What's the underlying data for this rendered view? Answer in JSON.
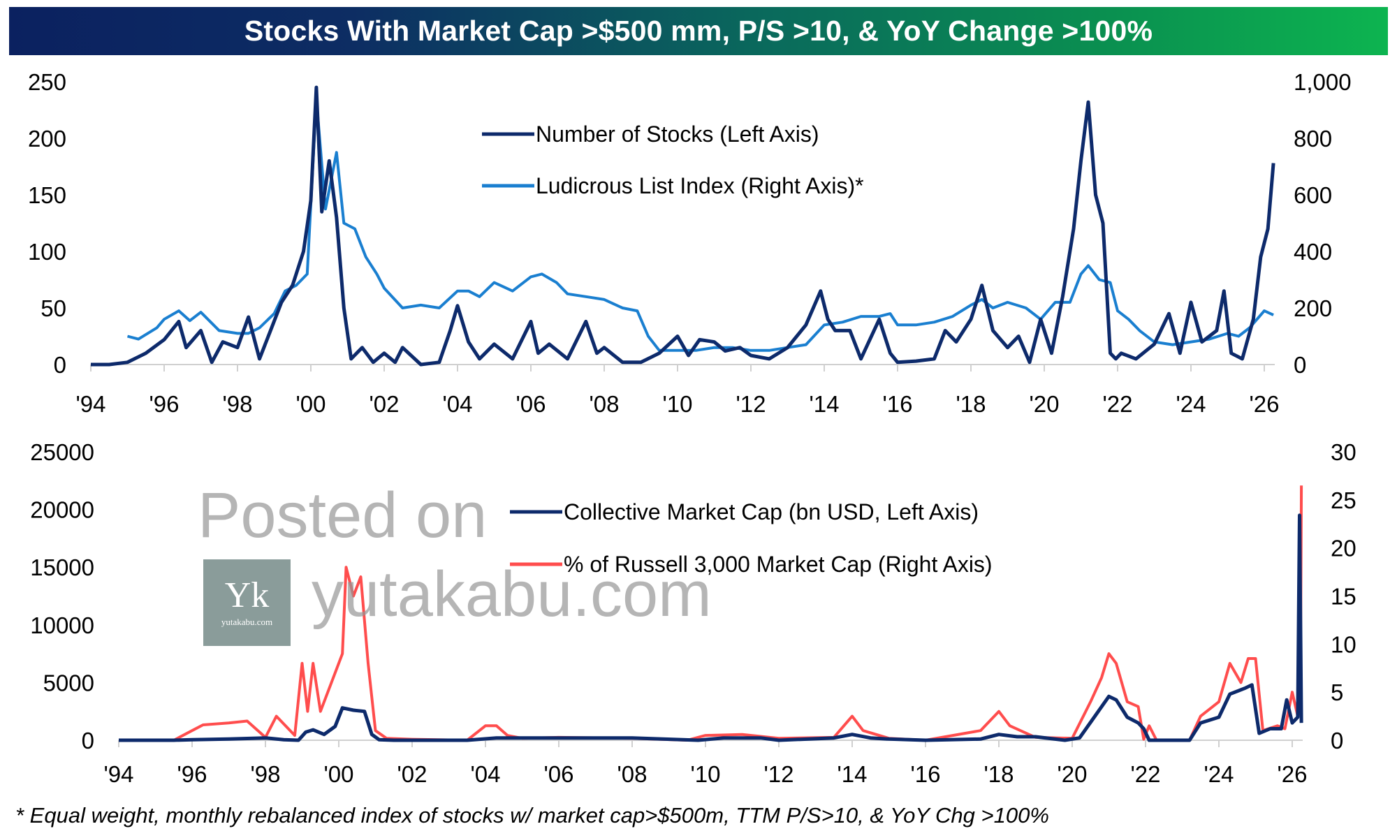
{
  "title": "Stocks With Market Cap >$500 mm, P/S >10, & YoY Change >100%",
  "footnote": "* Equal weight, monthly rebalanced index of stocks w/ market cap>$500m, TTM P/S>10, & YoY Chg >100%",
  "watermark": {
    "line1": "Posted on",
    "line2": "yutakabu.com",
    "logo_mark": "Yk",
    "logo_domain": "yutakabu.com"
  },
  "colors": {
    "navy": "#0d2a6b",
    "blue": "#1a7fd0",
    "red": "#ff4d4d",
    "dark_red": "#c0102a",
    "axis": "#d0d0d0"
  },
  "chart_data": [
    {
      "type": "line",
      "title": "Stocks With Market Cap >$500 mm, P/S >10, & YoY Change >100%",
      "x_tick_labels": [
        "'94",
        "'96",
        "'98",
        "'00",
        "'02",
        "'04",
        "'06",
        "'08",
        "'10",
        "'12",
        "'14",
        "'16",
        "'18",
        "'20",
        "'22",
        "'24",
        "'26"
      ],
      "x_ticks": [
        1994,
        1996,
        1998,
        2000,
        2002,
        2004,
        2006,
        2008,
        2010,
        2012,
        2014,
        2016,
        2018,
        2020,
        2022,
        2024,
        2026
      ],
      "xlim": [
        1994,
        2026.3
      ],
      "left_axis": {
        "ylim": [
          0,
          250
        ],
        "tick_labels": [
          "0",
          "50",
          "100",
          "150",
          "200",
          "250"
        ],
        "ticks": [
          0,
          50,
          100,
          150,
          200,
          250
        ]
      },
      "right_axis": {
        "ylim": [
          0,
          1000
        ],
        "tick_labels": [
          "0",
          "200",
          "400",
          "600",
          "800",
          "1,000"
        ],
        "ticks": [
          0,
          200,
          400,
          600,
          800,
          1000
        ]
      },
      "legend_position": "top-center",
      "series": [
        {
          "name": "Number of Stocks (Left Axis)",
          "axis": "left",
          "color": "#0d2a6b",
          "x": [
            1994,
            1994.5,
            1995,
            1995.5,
            1996,
            1996.4,
            1996.6,
            1997,
            1997.3,
            1997.6,
            1998,
            1998.3,
            1998.6,
            1998.9,
            1999.2,
            1999.5,
            1999.8,
            2000.0,
            2000.15,
            2000.3,
            2000.5,
            2000.7,
            2000.9,
            2001.1,
            2001.4,
            2001.7,
            2002,
            2002.3,
            2002.5,
            2003,
            2003.5,
            2003.8,
            2004,
            2004.3,
            2004.6,
            2005,
            2005.5,
            2006,
            2006.2,
            2006.5,
            2007,
            2007.5,
            2007.8,
            2008,
            2008.5,
            2009,
            2009.5,
            2010,
            2010.3,
            2010.6,
            2011,
            2011.3,
            2011.7,
            2012,
            2012.5,
            2013,
            2013.5,
            2013.9,
            2014.1,
            2014.3,
            2014.7,
            2015,
            2015.5,
            2015.8,
            2016,
            2016.5,
            2017,
            2017.3,
            2017.6,
            2018,
            2018.3,
            2018.6,
            2019,
            2019.3,
            2019.6,
            2019.9,
            2020.2,
            2020.5,
            2020.8,
            2021.0,
            2021.2,
            2021.4,
            2021.6,
            2021.8,
            2021.95,
            2022.1,
            2022.5,
            2023,
            2023.4,
            2023.7,
            2024,
            2024.3,
            2024.7,
            2024.9,
            2025.1,
            2025.4,
            2025.7,
            2025.9,
            2026.1,
            2026.25
          ],
          "y": [
            0,
            0,
            2,
            10,
            22,
            38,
            15,
            30,
            2,
            20,
            15,
            42,
            5,
            30,
            55,
            70,
            100,
            145,
            245,
            135,
            180,
            130,
            50,
            5,
            15,
            2,
            10,
            2,
            15,
            0,
            2,
            30,
            52,
            20,
            5,
            18,
            5,
            38,
            10,
            18,
            5,
            38,
            10,
            15,
            2,
            2,
            10,
            25,
            8,
            22,
            20,
            12,
            15,
            8,
            5,
            15,
            35,
            65,
            40,
            30,
            30,
            5,
            40,
            10,
            2,
            3,
            5,
            30,
            20,
            40,
            70,
            30,
            15,
            25,
            2,
            40,
            10,
            60,
            120,
            180,
            232,
            150,
            125,
            10,
            5,
            10,
            5,
            18,
            45,
            10,
            55,
            20,
            30,
            65,
            10,
            5,
            40,
            95,
            120,
            178
          ]
        },
        {
          "name": "Ludicrous List Index (Right Axis)*",
          "axis": "right",
          "color": "#1a7fd0",
          "x": [
            1995,
            1995.3,
            1995.8,
            1996,
            1996.4,
            1996.7,
            1997,
            1997.5,
            1998,
            1998.3,
            1998.6,
            1999,
            1999.3,
            1999.6,
            1999.9,
            2000.15,
            2000.4,
            2000.7,
            2000.9,
            2001.2,
            2001.5,
            2001.8,
            2002,
            2002.5,
            2003,
            2003.5,
            2004,
            2004.3,
            2004.6,
            2005,
            2005.5,
            2006,
            2006.3,
            2006.7,
            2007,
            2007.5,
            2008,
            2008.5,
            2008.9,
            2009.2,
            2009.5,
            2010,
            2010.5,
            2011,
            2011.5,
            2012,
            2012.5,
            2013,
            2013.5,
            2014,
            2014.5,
            2015,
            2015.5,
            2015.8,
            2016,
            2016.5,
            2017,
            2017.5,
            2018,
            2018.3,
            2018.6,
            2019,
            2019.5,
            2019.9,
            2020.3,
            2020.7,
            2021,
            2021.2,
            2021.5,
            2021.8,
            2022,
            2022.3,
            2022.6,
            2023,
            2023.5,
            2024,
            2024.5,
            2025,
            2025.3,
            2025.6,
            2026,
            2026.25
          ],
          "y": [
            100,
            90,
            130,
            160,
            190,
            155,
            185,
            120,
            110,
            110,
            130,
            180,
            260,
            280,
            320,
            940,
            550,
            750,
            500,
            480,
            380,
            320,
            270,
            200,
            210,
            200,
            260,
            260,
            240,
            290,
            260,
            310,
            320,
            290,
            250,
            240,
            230,
            200,
            190,
            100,
            50,
            50,
            50,
            60,
            60,
            50,
            50,
            60,
            70,
            140,
            150,
            170,
            170,
            180,
            140,
            140,
            150,
            170,
            210,
            230,
            200,
            220,
            200,
            160,
            220,
            220,
            320,
            350,
            300,
            290,
            190,
            160,
            120,
            80,
            70,
            80,
            90,
            110,
            100,
            130,
            190,
            175
          ]
        }
      ]
    },
    {
      "type": "line",
      "x_tick_labels": [
        "'94",
        "'96",
        "'98",
        "'00",
        "'02",
        "'04",
        "'06",
        "'08",
        "'10",
        "'12",
        "'14",
        "'16",
        "'18",
        "'20",
        "'22",
        "'24",
        "'26"
      ],
      "x_ticks": [
        1994,
        1996,
        1998,
        2000,
        2002,
        2004,
        2006,
        2008,
        2010,
        2012,
        2014,
        2016,
        2018,
        2020,
        2022,
        2024,
        2026
      ],
      "xlim": [
        1994,
        2026.3
      ],
      "left_axis": {
        "ylim": [
          0,
          25000
        ],
        "tick_labels": [
          "0",
          "5000",
          "10000",
          "15000",
          "20000",
          "25000"
        ],
        "ticks": [
          0,
          5000,
          10000,
          15000,
          20000,
          25000
        ]
      },
      "right_axis": {
        "ylim": [
          0,
          30
        ],
        "tick_labels": [
          "0",
          "5",
          "10",
          "15",
          "20",
          "25",
          "30"
        ],
        "ticks": [
          0,
          5,
          10,
          15,
          20,
          25,
          30
        ]
      },
      "legend_position": "top-center",
      "series": [
        {
          "name": "Collective Market Cap (bn USD, Left Axis)",
          "axis": "left",
          "color": "#0d2a6b",
          "x": [
            1994,
            1995.5,
            1996,
            1997,
            1998,
            1998.5,
            1998.9,
            1999.1,
            1999.3,
            1999.6,
            1999.9,
            2000.1,
            2000.4,
            2000.7,
            2000.9,
            2001.1,
            2001.5,
            2003.5,
            2004.3,
            2004.5,
            2006,
            2008,
            2009.8,
            2010.5,
            2011.5,
            2012,
            2013.5,
            2014,
            2014.5,
            2015,
            2016,
            2017.5,
            2018,
            2018.5,
            2019,
            2019.8,
            2020.2,
            2020.6,
            2021,
            2021.2,
            2021.5,
            2021.8,
            2021.95,
            2022.1,
            2022.5,
            2023.2,
            2023.5,
            2024,
            2024.3,
            2024.7,
            2024.9,
            2025.1,
            2025.4,
            2025.7,
            2025.85,
            2026,
            2026.15,
            2026.2,
            2026.25
          ],
          "y": [
            0,
            0,
            50,
            100,
            200,
            50,
            0,
            700,
            900,
            500,
            1200,
            2800,
            2600,
            2500,
            500,
            50,
            0,
            0,
            200,
            200,
            200,
            200,
            0,
            200,
            200,
            0,
            200,
            500,
            200,
            100,
            0,
            100,
            500,
            300,
            300,
            0,
            200,
            2000,
            3800,
            3500,
            2000,
            1500,
            1000,
            0,
            0,
            0,
            1500,
            2000,
            4000,
            4500,
            4800,
            600,
            1000,
            1000,
            3500,
            1500,
            2000,
            19500,
            1500
          ]
        },
        {
          "name": "% of Russell 3,000 Market Cap (Right Axis)",
          "axis": "right",
          "color": "#ff4d4d",
          "x": [
            1994,
            1995.5,
            1996,
            1996.3,
            1997,
            1997.5,
            1998,
            1998.3,
            1998.8,
            1999.0,
            1999.15,
            1999.3,
            1999.5,
            1999.8,
            2000.1,
            2000.2,
            2000.4,
            2000.6,
            2000.8,
            2001.0,
            2001.3,
            2002,
            2003.5,
            2004,
            2004.3,
            2004.6,
            2005,
            2006,
            2008,
            2009.5,
            2010,
            2011,
            2012,
            2013.5,
            2014,
            2014.3,
            2015,
            2016,
            2017.5,
            2018,
            2018.3,
            2019,
            2020,
            2020.5,
            2020.8,
            2021.0,
            2021.2,
            2021.5,
            2021.8,
            2021.95,
            2022.1,
            2022.3,
            2023.2,
            2023.5,
            2024,
            2024.3,
            2024.6,
            2024.8,
            2025.0,
            2025.2,
            2025.6,
            2025.8,
            2026.0,
            2026.15,
            2026.22,
            2026.25
          ],
          "y": [
            0,
            0,
            1.0,
            1.6,
            1.8,
            2.0,
            0.3,
            2.5,
            0.5,
            8,
            3,
            8,
            3,
            6,
            9,
            18,
            15,
            17,
            8,
            1,
            0.2,
            0.1,
            0,
            1.5,
            1.5,
            0.5,
            0.2,
            0.3,
            0.2,
            0,
            0.5,
            0.6,
            0.2,
            0.3,
            2.5,
            1,
            0.2,
            0,
            1,
            3,
            1.5,
            0.3,
            0.2,
            4,
            6.5,
            9,
            8,
            4,
            3.5,
            0.1,
            1.5,
            0,
            0,
            2.5,
            4,
            8,
            6,
            8.5,
            8.5,
            1,
            1.5,
            1.2,
            5,
            2.5,
            3.5,
            26.5
          ]
        }
      ]
    }
  ]
}
